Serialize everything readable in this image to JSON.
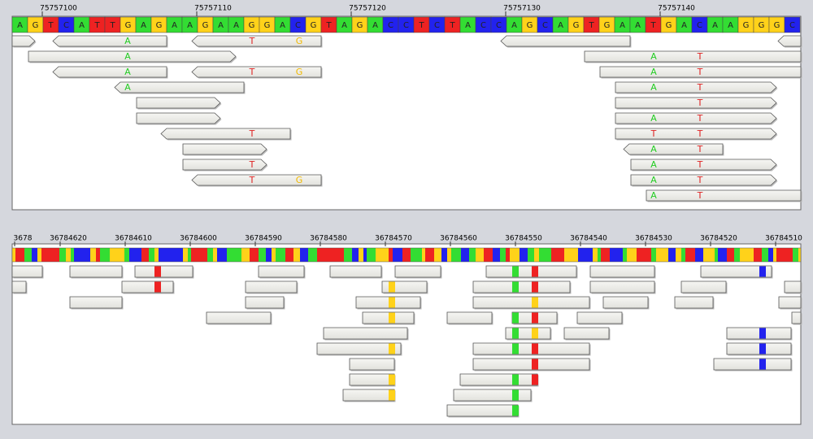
{
  "panel1": {
    "ticks": [
      "75757100",
      "75757110",
      "75757120",
      "75757130",
      "75757140"
    ],
    "sequence": [
      "A",
      "G",
      "T",
      "C",
      "A",
      "T",
      "T",
      "G",
      "A",
      "G",
      "A",
      "A",
      "G",
      "A",
      "A",
      "G",
      "G",
      "A",
      "C",
      "G",
      "T",
      "A",
      "G",
      "A",
      "C",
      "C",
      "T",
      "C",
      "T",
      "A",
      "C",
      "C",
      "A",
      "G",
      "C",
      "A",
      "G",
      "T",
      "G",
      "A",
      "A",
      "T",
      "G",
      "A",
      "C",
      "A",
      "A",
      "G",
      "G",
      "G",
      "C"
    ],
    "mismatch_letters": [
      "A",
      "T",
      "G",
      "A",
      "A",
      "T",
      "A",
      "T",
      "G",
      "A",
      "T",
      "A",
      "A",
      "T",
      "T",
      "A",
      "T",
      "T",
      "T",
      "T",
      "A",
      "T",
      "T",
      "A",
      "T",
      "T",
      "G",
      "A",
      "T",
      "A",
      "T"
    ]
  },
  "panel2": {
    "ticks": [
      "3678",
      "36784620",
      "36784610",
      "36784600",
      "36784590",
      "36784580",
      "36784570",
      "36784560",
      "36784550",
      "36784540",
      "36784530",
      "36784520",
      "36784510"
    ]
  }
}
